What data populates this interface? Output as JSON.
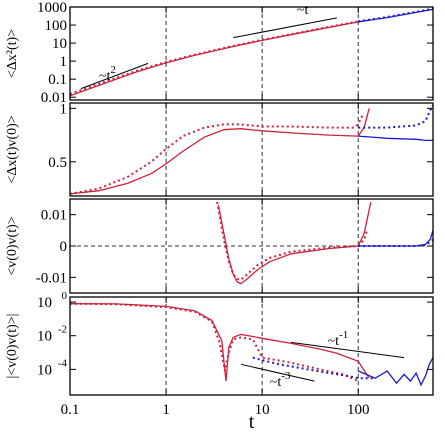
{
  "chart_data": {
    "type": "line",
    "xscale": "log",
    "xlim": [
      0.1,
      600
    ],
    "xlabel": "t",
    "xticks": [
      0.1,
      1,
      10,
      100
    ],
    "xtick_labels": [
      "0.1",
      "1",
      "10",
      "100"
    ],
    "vlines": [
      1,
      10,
      100
    ],
    "panels": [
      {
        "id": "msd",
        "ylabel": "<Δx²(t)>",
        "yscale": "log",
        "ylim": [
          0.007,
          1000
        ],
        "yticks": [
          0.01,
          0.1,
          1,
          10,
          100,
          1000
        ],
        "ytick_labels": [
          "0.01",
          "0.1",
          "1",
          "10",
          "100",
          "1000"
        ],
        "series": [
          {
            "color": "#d0203a",
            "style": "solid",
            "x": [
              0.1,
              0.2,
              0.5,
              1,
              2,
              5,
              10,
              20,
              50,
              100,
              130
            ],
            "y": [
              0.012,
              0.045,
              0.26,
              0.8,
              2.1,
              6.5,
              14,
              29,
              75,
              150,
              190
            ]
          },
          {
            "color": "#d0203a",
            "style": "dotted",
            "x": [
              0.1,
              0.2,
              0.5,
              1,
              2,
              5,
              10,
              20,
              50,
              100
            ],
            "y": [
              0.015,
              0.055,
              0.3,
              0.9,
              2.3,
              7,
              15,
              31,
              80,
              160
            ]
          },
          {
            "color": "#1a1ad0",
            "style": "solid",
            "x": [
              100,
              200,
              400,
              600
            ],
            "y": [
              150,
              260,
              500,
              750
            ]
          },
          {
            "color": "#1a1ad0",
            "style": "dotted",
            "x": [
              100,
              200,
              400,
              600
            ],
            "y": [
              160,
              280,
              540,
              800
            ]
          }
        ],
        "annotations": [
          {
            "text": "~t",
            "x": 23,
            "y": 420
          },
          {
            "text": "~t",
            "sup": "2",
            "x": 0.2,
            "y": 0.09
          }
        ],
        "guides": [
          {
            "x": [
              5,
              60
            ],
            "y": [
              20,
              250
            ]
          },
          {
            "x": [
              0.13,
              0.65
            ],
            "y": [
              0.03,
              0.75
            ]
          }
        ]
      },
      {
        "id": "dxv",
        "ylabel": "<Δx(t)v(0)>",
        "yscale": "linear",
        "ylim": [
          0.18,
          1.05
        ],
        "yticks": [
          0.5,
          1
        ],
        "ytick_labels": [
          "0.5",
          "1"
        ],
        "series": [
          {
            "color": "#d0203a",
            "style": "solid",
            "x": [
              0.1,
              0.2,
              0.4,
              0.7,
              1,
              1.5,
              2.5,
              4,
              6,
              10,
              20,
              50,
              100,
              115,
              130
            ],
            "y": [
              0.2,
              0.23,
              0.3,
              0.39,
              0.48,
              0.6,
              0.73,
              0.8,
              0.81,
              0.79,
              0.77,
              0.75,
              0.74,
              0.82,
              1.0
            ]
          },
          {
            "color": "#d0203a",
            "style": "dotted",
            "x": [
              0.1,
              0.2,
              0.4,
              0.7,
              1,
              1.5,
              2.5,
              4,
              6,
              10,
              20,
              50,
              90,
              100,
              110
            ],
            "y": [
              0.2,
              0.25,
              0.36,
              0.5,
              0.62,
              0.74,
              0.82,
              0.85,
              0.85,
              0.83,
              0.83,
              0.82,
              0.82,
              0.85,
              0.93
            ]
          },
          {
            "color": "#1a1ad0",
            "style": "solid",
            "x": [
              100,
              200,
              400,
              500,
              600
            ],
            "y": [
              0.74,
              0.72,
              0.71,
              0.7,
              0.7
            ]
          },
          {
            "color": "#1a1ad0",
            "style": "dotted",
            "x": [
              100,
              200,
              400,
              500,
              560,
              600
            ],
            "y": [
              0.82,
              0.82,
              0.84,
              0.88,
              0.98,
              1.03
            ]
          }
        ]
      },
      {
        "id": "vacf",
        "ylabel": "<v(0)v(t)>",
        "yscale": "linear",
        "ylim": [
          -0.015,
          0.015
        ],
        "yticks": [
          -0.01,
          0,
          0.01
        ],
        "ytick_labels": [
          "-0.01",
          "0",
          "0.01"
        ],
        "hline": 0,
        "series": [
          {
            "color": "#d0203a",
            "style": "solid",
            "x": [
              3.5,
              4,
              4.5,
              5,
              5.5,
              6,
              7,
              9,
              12,
              20,
              50,
              100,
              115,
              125,
              135
            ],
            "y": [
              0.013,
              0.004,
              -0.004,
              -0.009,
              -0.0115,
              -0.012,
              -0.0105,
              -0.0075,
              -0.005,
              -0.0025,
              -0.0008,
              0.0,
              0.004,
              0.009,
              0.014
            ]
          },
          {
            "color": "#d0203a",
            "style": "dotted",
            "x": [
              3.4,
              4,
              4.5,
              5,
              5.5,
              6,
              7,
              9,
              12,
              20,
              50,
              100,
              115,
              125
            ],
            "y": [
              0.014,
              0.002,
              -0.005,
              -0.009,
              -0.0105,
              -0.0108,
              -0.009,
              -0.006,
              -0.0038,
              -0.0018,
              -0.0005,
              0.0,
              0.002,
              0.0055
            ]
          },
          {
            "color": "#1a1ad0",
            "style": "solid",
            "x": [
              100,
              200,
              400,
              500,
              560,
              600
            ],
            "y": [
              0.0,
              0.0,
              0.0,
              0.0005,
              0.002,
              0.005
            ]
          },
          {
            "color": "#1a1ad0",
            "style": "dotted",
            "x": [
              100,
              200,
              400,
              500,
              600
            ],
            "y": [
              0.0,
              0.0,
              0.0,
              0.0003,
              0.002
            ]
          }
        ]
      },
      {
        "id": "absvacf",
        "ylabel": "|<v(0)v(t)>|",
        "yscale": "log",
        "ylim": [
          3e-06,
          2
        ],
        "yticks": [
          1,
          0.01,
          0.0001
        ],
        "ytick_labels": [
          "10",
          "10",
          "10"
        ],
        "ytick_sups": [
          "0",
          "-2",
          "-4"
        ],
        "series": [
          {
            "color": "#d0203a",
            "style": "solid",
            "x": [
              0.1,
              0.3,
              1,
              2,
              3,
              3.8,
              4.2,
              4.5,
              5,
              6,
              8,
              10,
              20,
              40,
              60,
              100,
              130
            ],
            "y": [
              0.8,
              0.78,
              0.55,
              0.3,
              0.08,
              0.005,
              2e-05,
              0.002,
              0.008,
              0.012,
              0.009,
              0.007,
              0.0035,
              0.0016,
              0.0009,
              0.0003,
              3e-05
            ]
          },
          {
            "color": "#d0203a",
            "style": "dotted",
            "x": [
              0.1,
              0.3,
              1,
              2,
              3,
              3.6,
              4.1,
              4.5,
              5,
              6,
              8,
              10,
              20,
              40,
              70,
              100
            ],
            "y": [
              0.8,
              0.75,
              0.5,
              0.26,
              0.07,
              0.004,
              8e-05,
              0.001,
              0.006,
              0.008,
              0.006,
              0.0005,
              0.00025,
              0.0001,
              5e-05,
              2e-05
            ]
          },
          {
            "color": "#1a1ad0",
            "style": "solid",
            "x": [
              100,
              150,
              200,
              250,
              300,
              350,
              400,
              450,
              500,
              550,
              600
            ],
            "y": [
              8e-05,
              3e-05,
              8e-05,
              1.5e-05,
              5e-05,
              2e-05,
              6e-05,
              1.2e-05,
              4e-05,
              0.0002,
              0.0005
            ]
          },
          {
            "color": "#1a1ad0",
            "style": "dotted",
            "x": [
              8,
              10,
              15,
              20,
              30,
              50,
              80,
              100,
              150
            ],
            "y": [
              0.0005,
              0.00035,
              0.0002,
              0.00015,
              0.0001,
              6e-05,
              4e-05,
              3e-05,
              3e-05
            ]
          }
        ],
        "annotations": [
          {
            "text": "~t",
            "sup": "-1",
            "x": 48,
            "y": 0.0028
          },
          {
            "text": "~t",
            "sup": "-3",
            "x": 12,
            "y": 1e-05
          }
        ],
        "guides": [
          {
            "x": [
              20,
              300
            ],
            "y": [
              0.004,
              0.0005
            ]
          },
          {
            "x": [
              6,
              35
            ],
            "y": [
              0.0002,
              2e-05
            ]
          }
        ]
      }
    ]
  }
}
